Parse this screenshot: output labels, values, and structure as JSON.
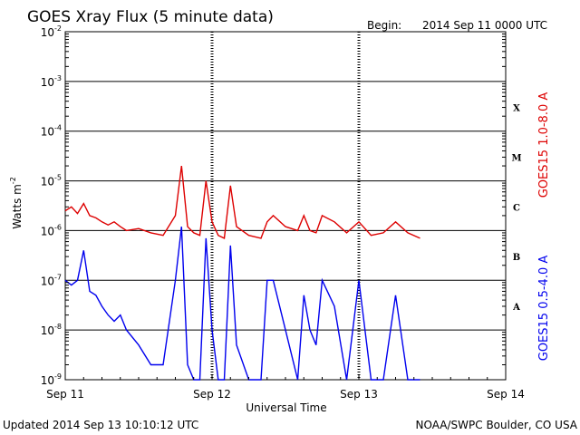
{
  "chart_data": {
    "type": "line",
    "title": "GOES Xray Flux (5 minute data)",
    "begin_label": "Begin:",
    "begin_value": "2014 Sep 11 0000 UTC",
    "xlabel": "Universal Time",
    "ylabel": "Watts m",
    "ylabel_exp": "-2",
    "y_scale": "log",
    "ylim": [
      1e-09,
      0.01
    ],
    "xlim": [
      "2014-09-11 00:00",
      "2014-09-14 00:00"
    ],
    "x_ticks": [
      {
        "x": "2014-09-11",
        "label": "Sep 11"
      },
      {
        "x": "2014-09-12",
        "label": "Sep 12"
      },
      {
        "x": "2014-09-13",
        "label": "Sep 13"
      },
      {
        "x": "2014-09-14",
        "label": "Sep 14"
      }
    ],
    "y_ticks": [
      {
        "value": 1e-09,
        "base": "10",
        "exp": "-9"
      },
      {
        "value": 1e-08,
        "base": "10",
        "exp": "-8"
      },
      {
        "value": 1e-07,
        "base": "10",
        "exp": "-7"
      },
      {
        "value": 1e-06,
        "base": "10",
        "exp": "-6"
      },
      {
        "value": 1e-05,
        "base": "10",
        "exp": "-5"
      },
      {
        "value": 0.0001,
        "base": "10",
        "exp": "-4"
      },
      {
        "value": 0.001,
        "base": "10",
        "exp": "-3"
      },
      {
        "value": 0.01,
        "base": "10",
        "exp": "-2"
      }
    ],
    "flare_classes": [
      {
        "label": "A",
        "value": 3e-08
      },
      {
        "label": "B",
        "value": 3e-07
      },
      {
        "label": "C",
        "value": 3e-06
      },
      {
        "label": "M",
        "value": 3e-05
      },
      {
        "label": "X",
        "value": 0.0003
      }
    ],
    "grid": true,
    "legend_position": "right",
    "series": [
      {
        "name": "GOES15 1.0-8.0 A",
        "color": "#dd0000",
        "x": [
          "2014-09-11 00:00",
          "2014-09-11 01:00",
          "2014-09-11 02:00",
          "2014-09-11 03:00",
          "2014-09-11 04:00",
          "2014-09-11 05:00",
          "2014-09-11 06:00",
          "2014-09-11 07:00",
          "2014-09-11 08:00",
          "2014-09-11 09:00",
          "2014-09-11 10:00",
          "2014-09-11 12:00",
          "2014-09-11 14:00",
          "2014-09-11 16:00",
          "2014-09-11 18:00",
          "2014-09-11 19:00",
          "2014-09-11 20:00",
          "2014-09-11 21:00",
          "2014-09-11 22:00",
          "2014-09-11 23:00",
          "2014-09-12 00:00",
          "2014-09-12 01:00",
          "2014-09-12 02:00",
          "2014-09-12 03:00",
          "2014-09-12 04:00",
          "2014-09-12 06:00",
          "2014-09-12 08:00",
          "2014-09-12 09:00",
          "2014-09-12 10:00",
          "2014-09-12 12:00",
          "2014-09-12 14:00",
          "2014-09-12 15:00",
          "2014-09-12 16:00",
          "2014-09-12 17:00",
          "2014-09-12 18:00",
          "2014-09-12 20:00",
          "2014-09-12 22:00",
          "2014-09-13 00:00",
          "2014-09-13 02:00",
          "2014-09-13 04:00",
          "2014-09-13 06:00",
          "2014-09-13 08:00",
          "2014-09-13 10:00"
        ],
        "values": [
          2.5e-06,
          3e-06,
          2.2e-06,
          3.5e-06,
          2e-06,
          1.8e-06,
          1.5e-06,
          1.3e-06,
          1.5e-06,
          1.2e-06,
          1e-06,
          1.1e-06,
          9e-07,
          8e-07,
          2e-06,
          2e-05,
          1.2e-06,
          9e-07,
          8e-07,
          1e-05,
          1.5e-06,
          8e-07,
          7e-07,
          8e-06,
          1.2e-06,
          8e-07,
          7e-07,
          1.5e-06,
          2e-06,
          1.2e-06,
          1e-06,
          2e-06,
          1e-06,
          9e-07,
          2e-06,
          1.5e-06,
          9e-07,
          1.5e-06,
          8e-07,
          9e-07,
          1.5e-06,
          9e-07,
          7e-07
        ]
      },
      {
        "name": "GOES15 0.5-4.0 A",
        "color": "#0000ee",
        "x": [
          "2014-09-11 00:00",
          "2014-09-11 01:00",
          "2014-09-11 02:00",
          "2014-09-11 03:00",
          "2014-09-11 04:00",
          "2014-09-11 05:00",
          "2014-09-11 06:00",
          "2014-09-11 07:00",
          "2014-09-11 08:00",
          "2014-09-11 09:00",
          "2014-09-11 10:00",
          "2014-09-11 12:00",
          "2014-09-11 14:00",
          "2014-09-11 16:00",
          "2014-09-11 18:00",
          "2014-09-11 19:00",
          "2014-09-11 20:00",
          "2014-09-11 21:00",
          "2014-09-11 22:00",
          "2014-09-11 23:00",
          "2014-09-12 00:00",
          "2014-09-12 01:00",
          "2014-09-12 02:00",
          "2014-09-12 03:00",
          "2014-09-12 04:00",
          "2014-09-12 06:00",
          "2014-09-12 08:00",
          "2014-09-12 09:00",
          "2014-09-12 10:00",
          "2014-09-12 12:00",
          "2014-09-12 14:00",
          "2014-09-12 15:00",
          "2014-09-12 16:00",
          "2014-09-12 17:00",
          "2014-09-12 18:00",
          "2014-09-12 20:00",
          "2014-09-12 22:00",
          "2014-09-13 00:00",
          "2014-09-13 02:00",
          "2014-09-13 04:00",
          "2014-09-13 06:00",
          "2014-09-13 08:00",
          "2014-09-13 10:00"
        ],
        "values": [
          1e-07,
          8e-08,
          1e-07,
          4e-07,
          6e-08,
          5e-08,
          3e-08,
          2e-08,
          1.5e-08,
          2e-08,
          1e-08,
          5e-09,
          2e-09,
          2e-09,
          1e-07,
          1.2e-06,
          2e-09,
          1e-09,
          1e-09,
          7e-07,
          1e-08,
          1e-09,
          1e-09,
          5e-07,
          5e-09,
          1e-09,
          1e-09,
          1e-07,
          1e-07,
          1e-08,
          1e-09,
          5e-08,
          1e-08,
          5e-09,
          1e-07,
          3e-08,
          1e-09,
          1e-07,
          1e-09,
          1e-09,
          5e-08,
          1e-09,
          1e-09
        ]
      }
    ]
  },
  "footer": {
    "updated": "Updated 2014 Sep 13 10:10:12 UTC",
    "credit": "NOAA/SWPC Boulder, CO USA"
  }
}
